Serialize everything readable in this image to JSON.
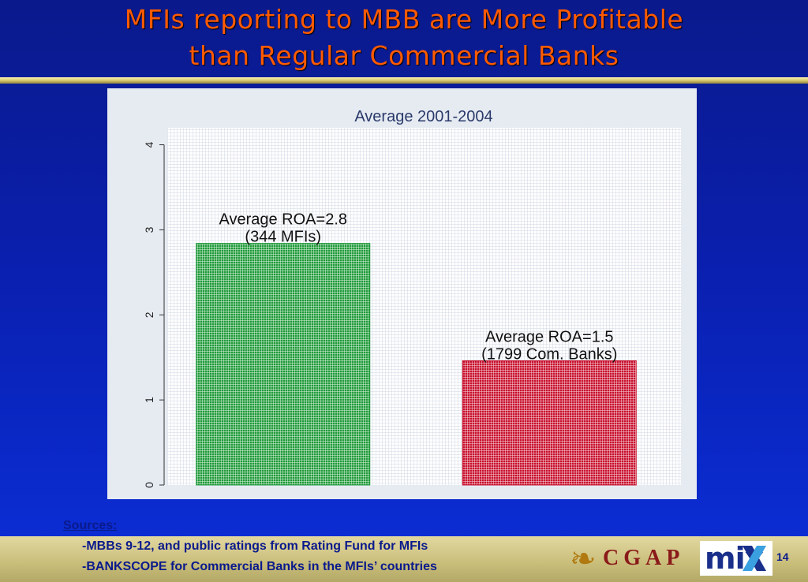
{
  "slide": {
    "title_line1": "MFIs reporting to MBB are More Profitable",
    "title_line2": "than Regular Commercial Banks",
    "page_number": "14"
  },
  "sources": {
    "label": "Sources:",
    "lines": [
      "-MBBs 9-12, and public ratings from Rating Fund for MFIs",
      "-BANKSCOPE for Commercial Banks in the MFIs’ countries"
    ]
  },
  "logos": {
    "cgap": "CGAP",
    "mix": "mix"
  },
  "colors": {
    "title": "#ff5a00",
    "mfi_bar": "#1f9a3a",
    "bank_bar": "#c8102e",
    "footer": "#d8cc88",
    "background": "#0a1fae"
  },
  "chart_data": {
    "type": "bar",
    "title": "Average 2001-2004",
    "xlabel": "",
    "ylabel": "",
    "ylim": [
      0,
      4.2
    ],
    "yticks": [
      0,
      1,
      2,
      3,
      4
    ],
    "grid": true,
    "bars": [
      {
        "value": 2.84,
        "color": "#1f9a3a",
        "label_line1": "Average ROA=2.8",
        "label_line2": "(344 MFIs)"
      },
      {
        "value": 1.46,
        "color": "#c8102e",
        "label_line1": "Average ROA=1.5",
        "label_line2": "(1799 Com. Banks)"
      }
    ]
  }
}
